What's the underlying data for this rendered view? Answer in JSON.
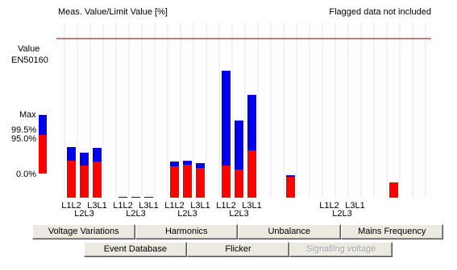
{
  "chart_data": {
    "type": "bar",
    "title": "Meas. Value/Limit Value [%]",
    "note": "Flagged data not included",
    "ylabel": [
      "Value",
      "EN50160"
    ],
    "legend_labels": [
      "99.5%",
      "0.0%"
    ],
    "ylim": [
      0,
      100
    ],
    "limit_value": 100,
    "limit_color": "#800000",
    "categories": [
      "L1L2",
      "L2L3",
      "L3L1",
      null,
      "L1L2",
      "L2L3",
      "L3L1",
      null,
      "L1L2",
      "L2L3",
      "L3L1",
      null,
      "L1L2",
      "L2L3",
      "L3L1",
      null,
      null,
      null,
      null,
      null,
      "L1L2",
      "L2L3",
      "L3L1",
      null,
      null,
      null
    ],
    "series": [
      {
        "name": "Max",
        "color": "#0000ee",
        "values": [
          31.8,
          28.3,
          31.3,
          null,
          0.5,
          0.5,
          0.5,
          null,
          22.7,
          23.2,
          21.7,
          null,
          79.8,
          48.5,
          64.6,
          null,
          null,
          14.1,
          null,
          null,
          null,
          null,
          null,
          null,
          null,
          null
        ]
      },
      {
        "name": "95.0%",
        "color": "#ff0000",
        "values": [
          23.2,
          20.2,
          22.7,
          null,
          null,
          null,
          null,
          null,
          19.7,
          20.7,
          18.7,
          null,
          20.2,
          17.7,
          29.8,
          null,
          null,
          13.1,
          null,
          null,
          null,
          null,
          null,
          null,
          null,
          9.6
        ]
      }
    ]
  },
  "buttons": [
    [
      "Voltage Variations",
      "Harmonics",
      "Unbalance",
      "Mains Frequency"
    ],
    [
      "Event Database",
      "Flicker",
      "Signalling voltage"
    ]
  ]
}
